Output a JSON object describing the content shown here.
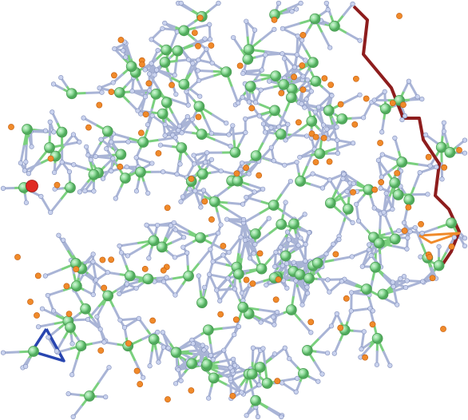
{
  "colors": {
    "background": "#ffffff",
    "bond": "#a9b4d6",
    "bond_outline": "#7f8cb8",
    "hub_fill": "#8fdc9a",
    "hub_bond": "#7ad07e",
    "ion_fill": "#f08a2a",
    "ion_outline": "#c05a0c",
    "leaf_fill": "#c9d2ee",
    "highlight_node": "#e02a22",
    "path_red": "#8e1d1d",
    "path_blue": "#2845b0",
    "path_orange": "#f08a2a"
  },
  "legend": []
}
